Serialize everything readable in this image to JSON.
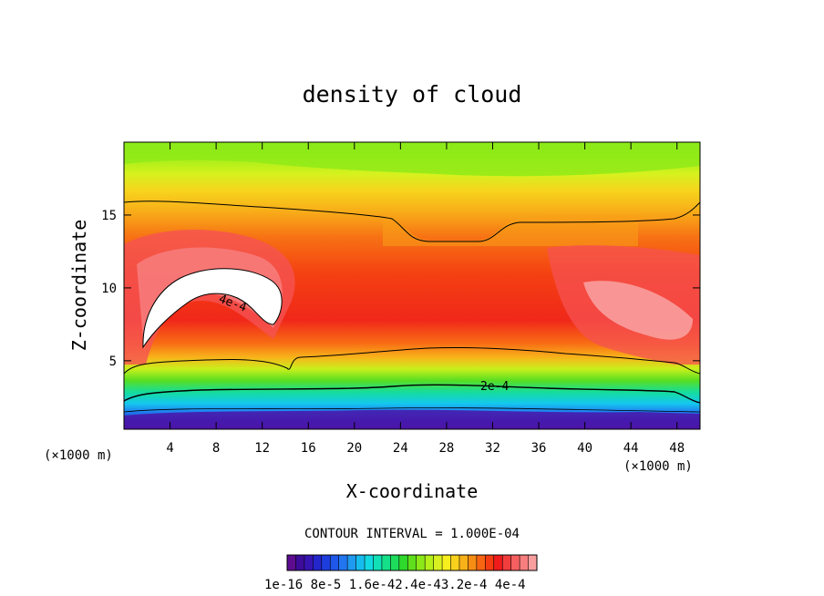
{
  "chart_data": {
    "type": "heatmap",
    "title": "density of cloud",
    "xlabel": "X-coordinate",
    "ylabel": "Z-coordinate",
    "x_unit_left": "(×1000 m)",
    "x_unit_right": "(×1000 m)",
    "xlim": [
      0,
      50
    ],
    "ylim": [
      0.3,
      20
    ],
    "x_ticks": [
      4,
      8,
      12,
      16,
      20,
      24,
      28,
      32,
      36,
      40,
      44,
      48
    ],
    "y_ticks": [
      5,
      10,
      15
    ],
    "contour_interval_text": "CONTOUR INTERVAL = 1.000E-04",
    "contour_labels": [
      "4e-4",
      "2e-4"
    ],
    "colorbar": {
      "labels": [
        "1e-16",
        "8e-5",
        "1.6e-4",
        "2.4e-4",
        "3.2e-4",
        "4e-4"
      ],
      "label_strip": "1e-16 8e-5 1.6e-42.4e-43.2e-4 4e-4",
      "colors": [
        "#5d0c90",
        "#3d0c9a",
        "#3614b2",
        "#2426cc",
        "#1d3ddd",
        "#1f57ea",
        "#2176f0",
        "#1f9af0",
        "#16bcee",
        "#12d8e2",
        "#11e0b6",
        "#14e08a",
        "#1ddc5c",
        "#2ed92c",
        "#5fdf1c",
        "#8be918",
        "#b5f01a",
        "#d8f020",
        "#f7ee1e",
        "#f8d11c",
        "#f8b118",
        "#f88d14",
        "#f86512",
        "#f43c10",
        "#f01c1c",
        "#f23d3d",
        "#f55f5f",
        "#f77e7e",
        "#f99e9e"
      ]
    }
  }
}
